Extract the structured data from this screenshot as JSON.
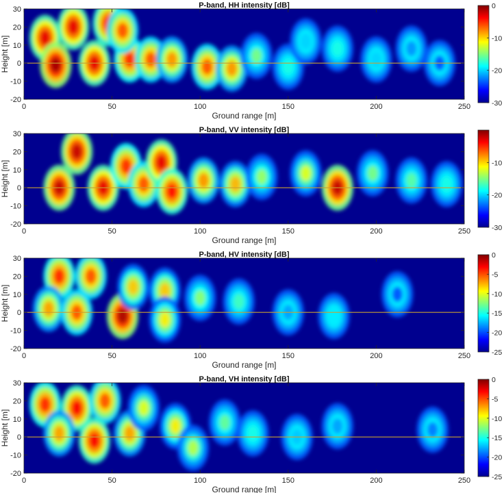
{
  "chart_data": [
    {
      "type": "heatmap",
      "title": "P-band, HH intensity [dB]",
      "xlabel": "Ground range [m]",
      "ylabel": "Height [m]",
      "xlim": [
        0,
        250
      ],
      "ylim": [
        -20,
        30
      ],
      "xticks": [
        0,
        50,
        100,
        150,
        200,
        250
      ],
      "yticks": [
        -20,
        -10,
        0,
        10,
        20,
        30
      ],
      "colorbar": {
        "range": [
          -30,
          0
        ],
        "ticks": [
          0,
          -10,
          -20,
          -30
        ]
      },
      "reference_height": 0,
      "blobs": [
        {
          "x": 12,
          "y": 14,
          "v": -3
        },
        {
          "x": 28,
          "y": 20,
          "v": -3
        },
        {
          "x": 48,
          "y": 22,
          "v": -4
        },
        {
          "x": 18,
          "y": -1,
          "v": -1
        },
        {
          "x": 40,
          "y": 0,
          "v": -3
        },
        {
          "x": 60,
          "y": 2,
          "v": -5
        },
        {
          "x": 56,
          "y": 18,
          "v": -6
        },
        {
          "x": 72,
          "y": 2,
          "v": -6
        },
        {
          "x": 84,
          "y": 2,
          "v": -8
        },
        {
          "x": 104,
          "y": -2,
          "v": -6
        },
        {
          "x": 118,
          "y": -3,
          "v": -8
        },
        {
          "x": 132,
          "y": 4,
          "v": -15
        },
        {
          "x": 150,
          "y": -2,
          "v": -18
        },
        {
          "x": 160,
          "y": 12,
          "v": -20
        },
        {
          "x": 178,
          "y": 8,
          "v": -18
        },
        {
          "x": 200,
          "y": 2,
          "v": -20
        },
        {
          "x": 220,
          "y": 8,
          "v": -22
        },
        {
          "x": 236,
          "y": 0,
          "v": -24
        }
      ]
    },
    {
      "type": "heatmap",
      "title": "P-band, VV intensity [dB]",
      "xlabel": "Ground range [m]",
      "ylabel": "Height [m]",
      "xlim": [
        0,
        250
      ],
      "ylim": [
        -20,
        30
      ],
      "xticks": [
        0,
        50,
        100,
        150,
        200,
        250
      ],
      "yticks": [
        -20,
        -10,
        0,
        10,
        20,
        30
      ],
      "colorbar": {
        "range": [
          -30,
          0
        ],
        "ticks": [
          -10,
          -20,
          -30
        ]
      },
      "reference_height": 0,
      "blobs": [
        {
          "x": 30,
          "y": 20,
          "v": -2
        },
        {
          "x": 20,
          "y": 0,
          "v": -2
        },
        {
          "x": 45,
          "y": 0,
          "v": -3
        },
        {
          "x": 58,
          "y": 12,
          "v": -5
        },
        {
          "x": 68,
          "y": 2,
          "v": -6
        },
        {
          "x": 78,
          "y": 14,
          "v": -3
        },
        {
          "x": 84,
          "y": -2,
          "v": -4
        },
        {
          "x": 102,
          "y": 4,
          "v": -8
        },
        {
          "x": 120,
          "y": 2,
          "v": -9
        },
        {
          "x": 135,
          "y": 6,
          "v": -14
        },
        {
          "x": 160,
          "y": 8,
          "v": -12
        },
        {
          "x": 178,
          "y": 0,
          "v": -2
        },
        {
          "x": 198,
          "y": 8,
          "v": -15
        },
        {
          "x": 220,
          "y": 4,
          "v": -16
        },
        {
          "x": 240,
          "y": 2,
          "v": -18
        }
      ]
    },
    {
      "type": "heatmap",
      "title": "P-band, HV intensity [dB]",
      "xlabel": "Ground range [m]",
      "ylabel": "Height [m]",
      "xlim": [
        0,
        250
      ],
      "ylim": [
        -20,
        30
      ],
      "xticks": [
        0,
        50,
        100,
        150,
        200,
        250
      ],
      "yticks": [
        -20,
        -10,
        0,
        10,
        20,
        30
      ],
      "colorbar": {
        "range": [
          -25,
          0
        ],
        "ticks": [
          0,
          -5,
          -10,
          -15,
          -20,
          -25
        ]
      },
      "reference_height": 0,
      "blobs": [
        {
          "x": 20,
          "y": 20,
          "v": -4
        },
        {
          "x": 38,
          "y": 20,
          "v": -5
        },
        {
          "x": 14,
          "y": 2,
          "v": -7
        },
        {
          "x": 30,
          "y": 0,
          "v": -5
        },
        {
          "x": 56,
          "y": -2,
          "v": -1
        },
        {
          "x": 62,
          "y": 14,
          "v": -8
        },
        {
          "x": 80,
          "y": 12,
          "v": -8
        },
        {
          "x": 80,
          "y": -4,
          "v": -9
        },
        {
          "x": 100,
          "y": 8,
          "v": -12
        },
        {
          "x": 122,
          "y": 6,
          "v": -14
        },
        {
          "x": 150,
          "y": 0,
          "v": -18
        },
        {
          "x": 176,
          "y": -2,
          "v": -16
        },
        {
          "x": 212,
          "y": 10,
          "v": -20
        }
      ]
    },
    {
      "type": "heatmap",
      "title": "P-band, VH intensity [dB]",
      "xlabel": "Ground range [m]",
      "ylabel": "Height [m]",
      "xlim": [
        0,
        250
      ],
      "ylim": [
        -20,
        30
      ],
      "xticks": [
        0,
        50,
        100,
        150,
        200,
        250
      ],
      "yticks": [
        -20,
        -10,
        0,
        10,
        20,
        30
      ],
      "colorbar": {
        "range": [
          -25,
          0
        ],
        "ticks": [
          0,
          -5,
          -10,
          -15,
          -20,
          -25
        ]
      },
      "reference_height": 0,
      "blobs": [
        {
          "x": 12,
          "y": 18,
          "v": -4
        },
        {
          "x": 30,
          "y": 16,
          "v": -3
        },
        {
          "x": 46,
          "y": 20,
          "v": -5
        },
        {
          "x": 20,
          "y": 2,
          "v": -7
        },
        {
          "x": 40,
          "y": -2,
          "v": -3
        },
        {
          "x": 60,
          "y": 2,
          "v": -7
        },
        {
          "x": 68,
          "y": 16,
          "v": -10
        },
        {
          "x": 86,
          "y": 6,
          "v": -9
        },
        {
          "x": 96,
          "y": -6,
          "v": -11
        },
        {
          "x": 114,
          "y": 8,
          "v": -13
        },
        {
          "x": 130,
          "y": 2,
          "v": -15
        },
        {
          "x": 155,
          "y": 0,
          "v": -17
        },
        {
          "x": 178,
          "y": 6,
          "v": -18
        },
        {
          "x": 232,
          "y": 4,
          "v": -19
        }
      ]
    }
  ]
}
